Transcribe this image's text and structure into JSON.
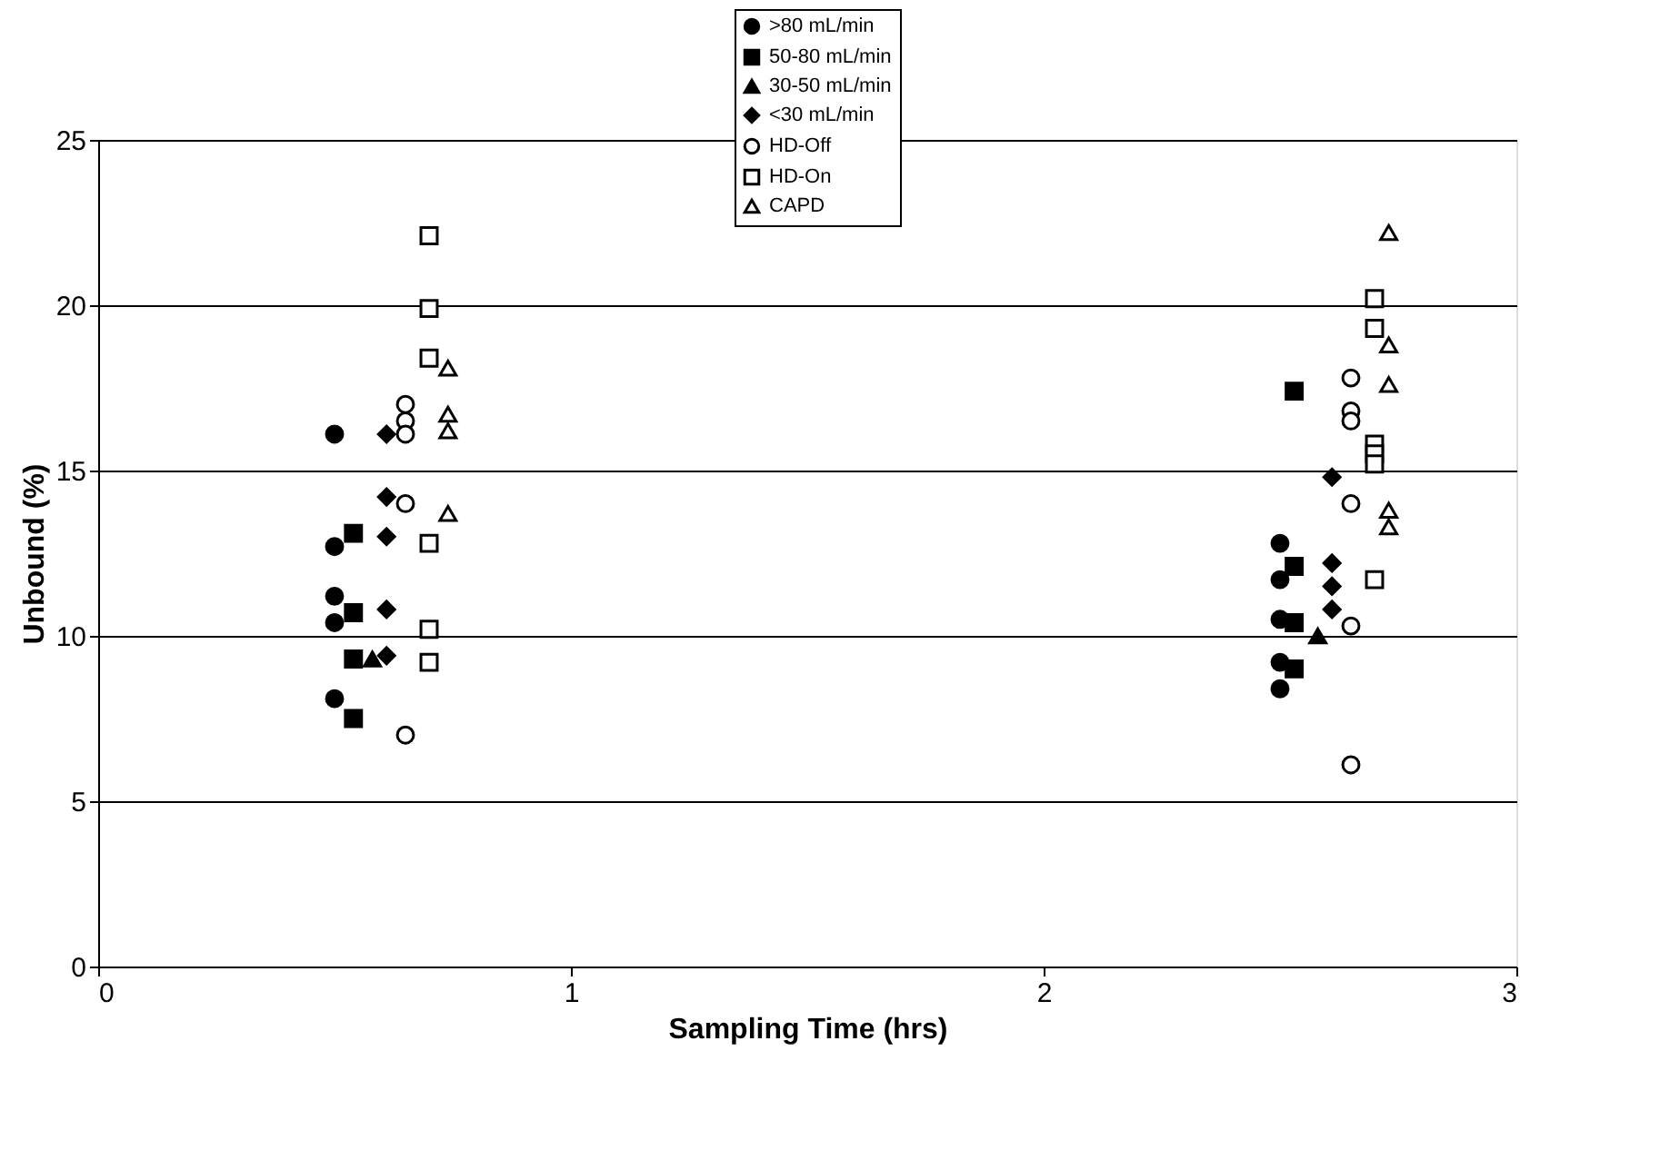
{
  "chart_data": {
    "type": "scatter",
    "xlabel": "Sampling Time (hrs)",
    "ylabel": "Unbound (%)",
    "xlim": [
      0,
      3
    ],
    "xticks": [
      0,
      1,
      2,
      3
    ],
    "ylim": [
      0,
      25
    ],
    "yticks": [
      0,
      5,
      10,
      15,
      20,
      25
    ],
    "grid": "y",
    "legend": "top",
    "series": [
      {
        "name": ">80 mL/min",
        "color": "#000000",
        "marker": "circle",
        "x": [
          0.5,
          0.5,
          0.5,
          0.5,
          0.5,
          2.5,
          2.5,
          2.5,
          2.5,
          2.5
        ],
        "values": [
          16.1,
          12.7,
          11.2,
          10.4,
          8.1,
          12.8,
          11.7,
          10.5,
          9.2,
          8.4
        ]
      },
      {
        "name": "50-80 mL/min",
        "color": "#000000",
        "marker": "square",
        "x": [
          0.54,
          0.54,
          0.54,
          0.54,
          2.53,
          2.53,
          2.53,
          2.53
        ],
        "values": [
          13.1,
          10.7,
          9.3,
          7.5,
          17.4,
          12.1,
          10.4,
          9.0
        ]
      },
      {
        "name": "30-50 mL/min",
        "color": "#000000",
        "marker": "triangle",
        "x": [
          0.58,
          2.58
        ],
        "values": [
          9.3,
          10.0
        ]
      },
      {
        "name": "<30 mL/min",
        "color": "#000000",
        "marker": "diamond",
        "x": [
          0.61,
          0.61,
          0.61,
          0.61,
          0.61,
          2.61,
          2.61,
          2.61,
          2.61
        ],
        "values": [
          16.1,
          14.2,
          13.0,
          10.8,
          9.4,
          14.8,
          12.2,
          11.5,
          10.8
        ]
      },
      {
        "name": "HD-Off",
        "color": "#000000",
        "marker": "circle-open",
        "x": [
          0.65,
          0.65,
          0.65,
          0.65,
          0.65,
          2.65,
          2.65,
          2.65,
          2.65,
          2.65,
          2.65
        ],
        "values": [
          17.0,
          16.5,
          16.1,
          14.0,
          7.0,
          17.8,
          16.8,
          16.5,
          14.0,
          10.3,
          6.1
        ]
      },
      {
        "name": "HD-On",
        "color": "#000000",
        "marker": "square-open",
        "x": [
          0.7,
          0.7,
          0.7,
          0.7,
          0.7,
          0.7,
          2.7,
          2.7,
          2.7,
          2.7,
          2.7,
          2.7
        ],
        "values": [
          22.1,
          19.9,
          18.4,
          12.8,
          10.2,
          9.2,
          20.2,
          19.3,
          15.8,
          15.5,
          15.2,
          11.7
        ]
      },
      {
        "name": "CAPD",
        "color": "#000000",
        "marker": "triangle-open",
        "x": [
          0.74,
          0.74,
          0.74,
          0.74,
          2.73,
          2.73,
          2.73,
          2.73,
          2.73
        ],
        "values": [
          18.1,
          16.7,
          16.2,
          13.7,
          22.2,
          18.8,
          17.6,
          13.8,
          13.3
        ]
      }
    ]
  }
}
